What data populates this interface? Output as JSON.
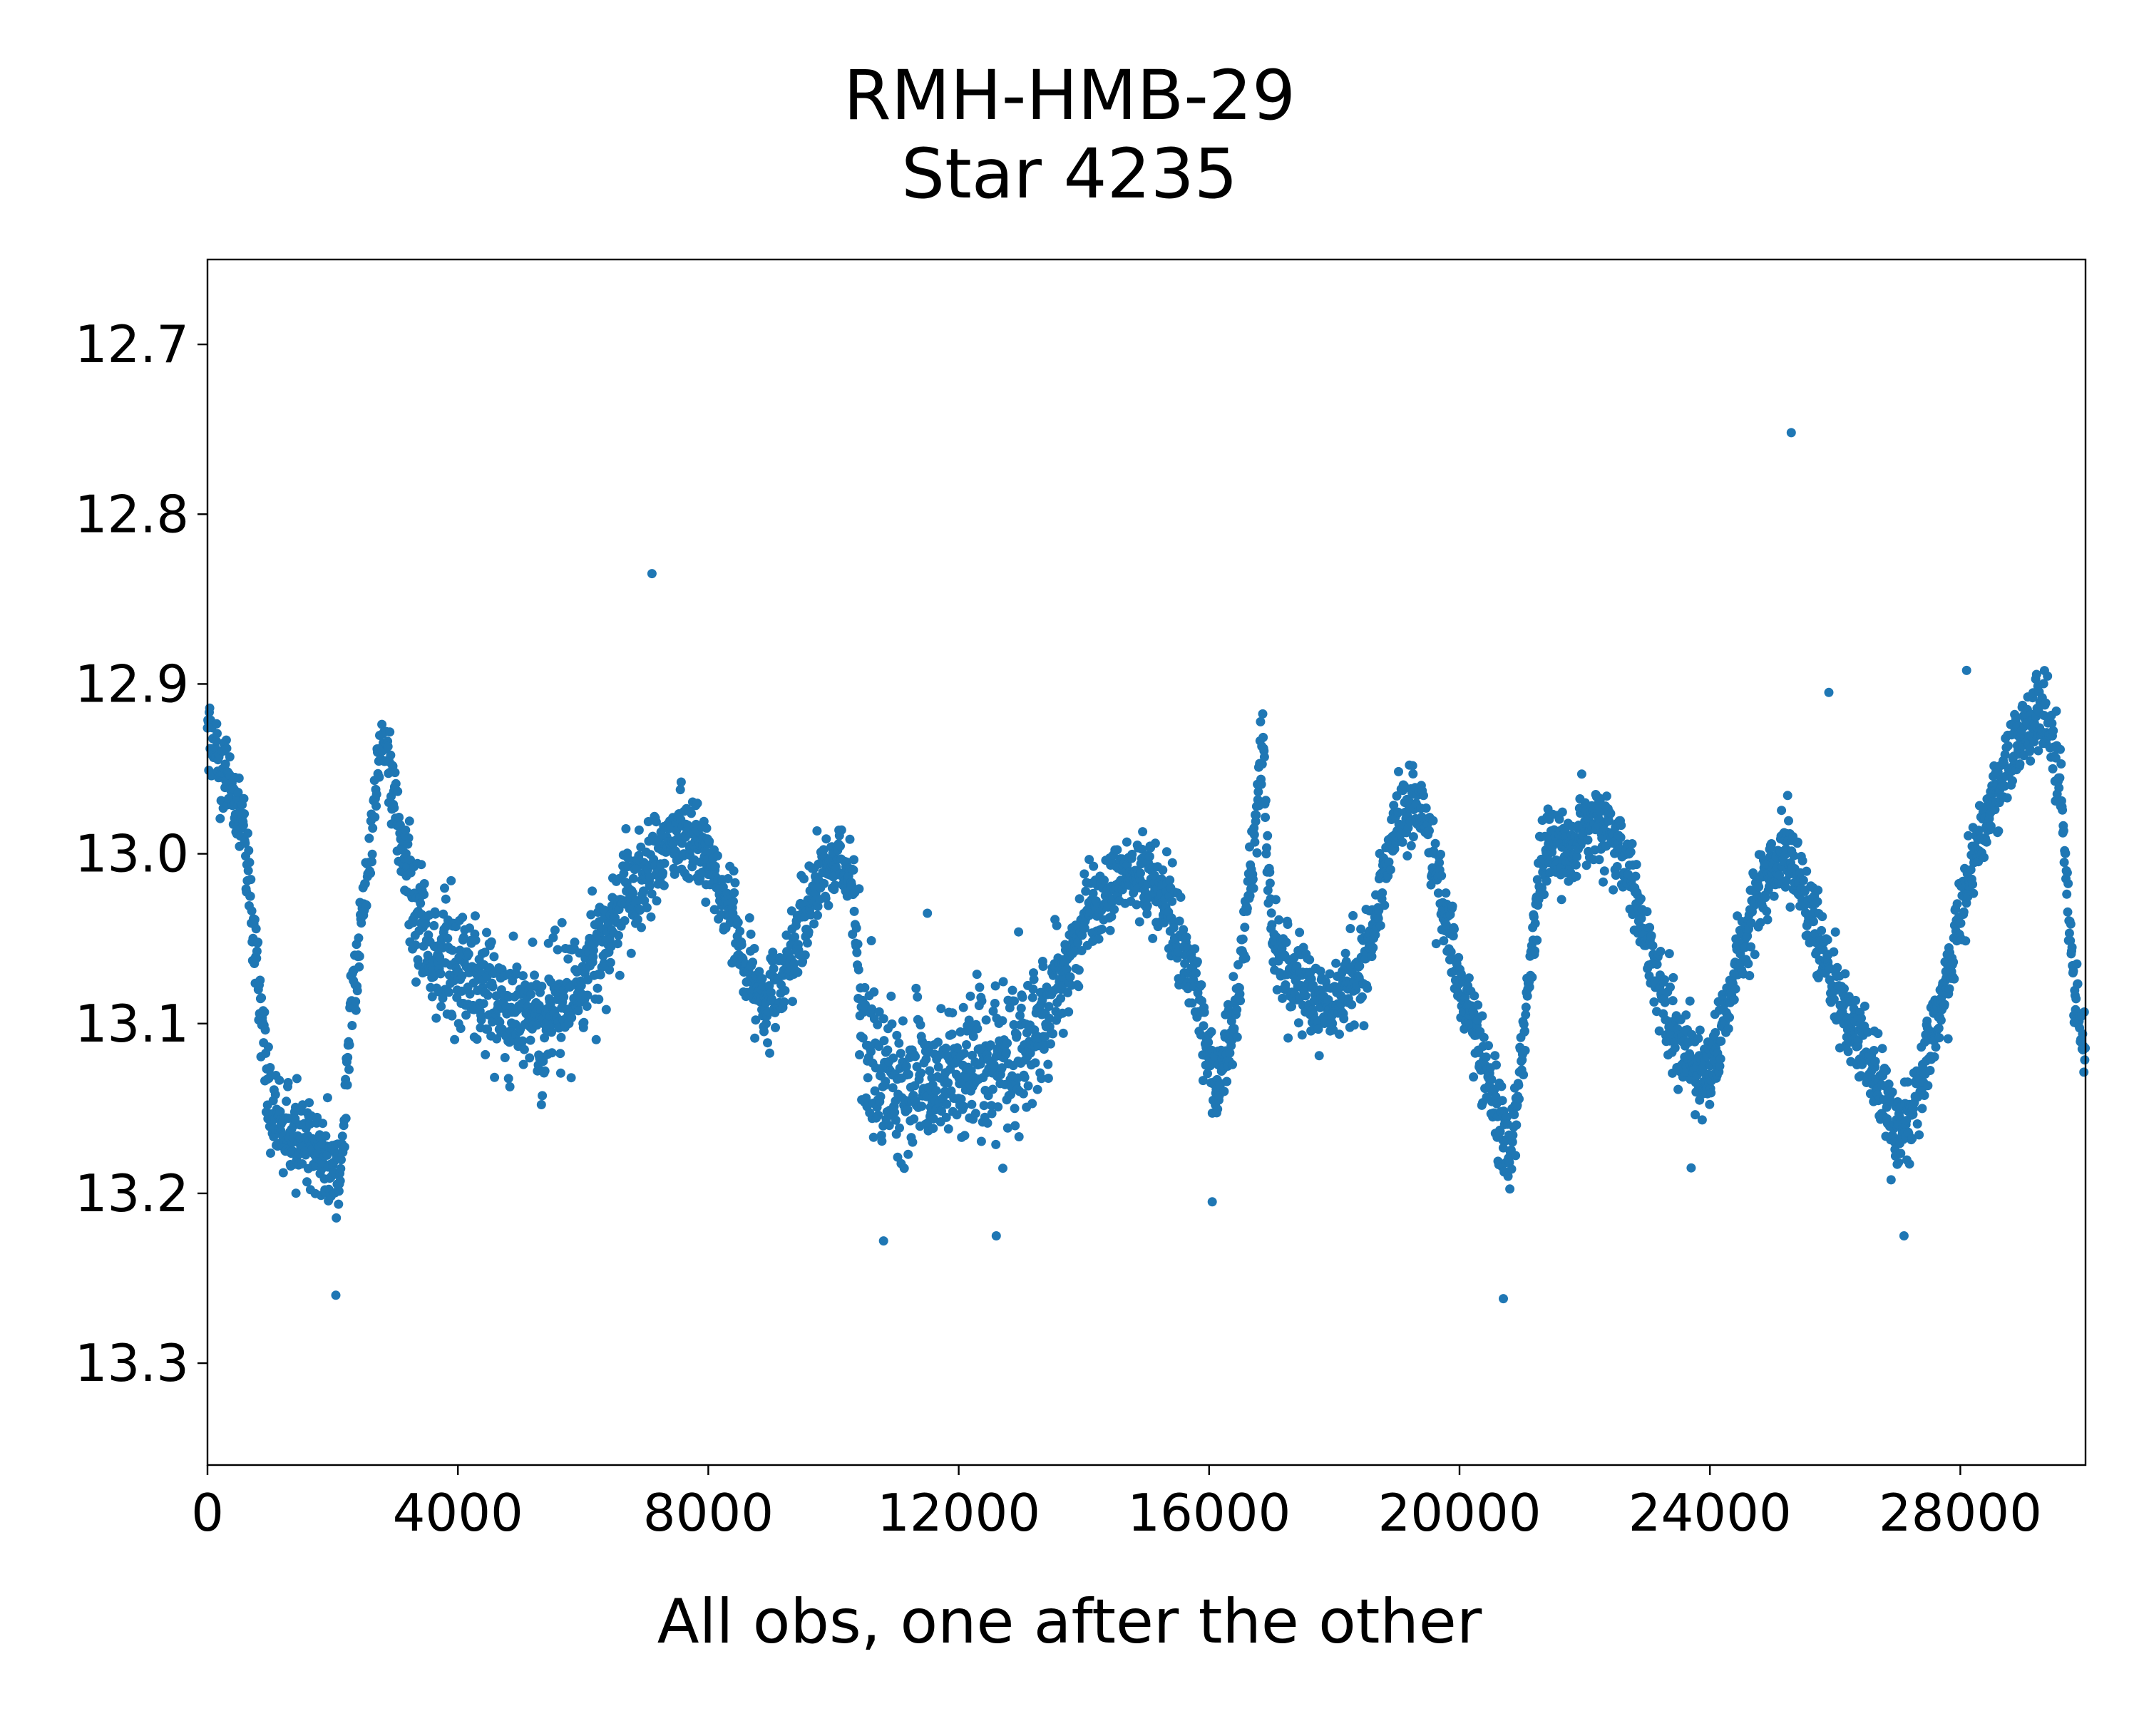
{
  "chart_data": {
    "type": "scatter",
    "title": "RMH-HMB-29",
    "subtitle": "Star 4235",
    "xlabel": "All obs, one after the other",
    "ylabel": "",
    "xlim": [
      0,
      30000
    ],
    "ylim": [
      13.36,
      12.65
    ],
    "y_inverted": true,
    "grid": false,
    "legend": "none",
    "marker_color": "#1f77b4",
    "xticks": [
      0,
      4000,
      8000,
      12000,
      16000,
      20000,
      24000,
      28000
    ],
    "xtick_labels": [
      "0",
      "4000",
      "8000",
      "12000",
      "16000",
      "20000",
      "24000",
      "28000"
    ],
    "yticks": [
      12.7,
      12.8,
      12.9,
      13.0,
      13.1,
      13.2,
      13.3
    ],
    "ytick_labels": [
      "12.7",
      "12.8",
      "12.9",
      "13.0",
      "13.1",
      "13.2",
      "13.3"
    ],
    "trend": {
      "x": [
        0,
        300,
        600,
        800,
        1000,
        1200,
        1600,
        2000,
        2100,
        2300,
        2600,
        2800,
        3000,
        3300,
        3600,
        4200,
        4800,
        5400,
        6000,
        6600,
        7200,
        7800,
        8400,
        8900,
        9300,
        9700,
        10000,
        10300,
        10500,
        11000,
        12000,
        13000,
        13500,
        14000,
        14600,
        15200,
        15800,
        16100,
        16400,
        16700,
        16850,
        17000,
        17500,
        18000,
        18500,
        19000,
        19400,
        19800,
        20200,
        20600,
        20800,
        21000,
        21300,
        21700,
        22200,
        22700,
        23200,
        23600,
        24000,
        24400,
        24800,
        25200,
        25600,
        26000,
        26500,
        27000,
        27400,
        27800,
        28200,
        28600,
        29000,
        29300,
        29600,
        29800,
        30000
      ],
      "y": [
        12.93,
        12.95,
        12.99,
        13.07,
        13.15,
        13.16,
        13.17,
        13.19,
        13.2,
        13.09,
        13.0,
        12.93,
        12.97,
        13.03,
        13.06,
        13.07,
        13.09,
        13.1,
        13.07,
        13.03,
        13.0,
        12.99,
        13.04,
        13.09,
        13.06,
        13.02,
        13.0,
        13.02,
        13.12,
        13.14,
        13.13,
        13.12,
        13.09,
        13.04,
        13.01,
        13.02,
        13.08,
        13.14,
        13.1,
        13.0,
        12.93,
        13.05,
        13.08,
        13.09,
        13.06,
        12.98,
        12.97,
        13.04,
        13.1,
        13.15,
        13.18,
        13.12,
        13.0,
        13.0,
        12.98,
        13.01,
        13.08,
        13.12,
        13.13,
        13.07,
        13.02,
        13.0,
        13.03,
        13.08,
        13.12,
        13.17,
        13.13,
        13.07,
        13.0,
        12.96,
        12.93,
        12.91,
        12.96,
        13.08,
        13.12
      ]
    },
    "n_points": 30000,
    "outliers": [
      {
        "x": 7100,
        "y": 12.835
      },
      {
        "x": 25300,
        "y": 12.752
      },
      {
        "x": 25900,
        "y": 12.905
      },
      {
        "x": 28100,
        "y": 12.892
      },
      {
        "x": 11500,
        "y": 13.035
      },
      {
        "x": 20700,
        "y": 13.262
      },
      {
        "x": 12600,
        "y": 13.225
      },
      {
        "x": 10800,
        "y": 13.228
      },
      {
        "x": 2050,
        "y": 13.26
      },
      {
        "x": 16050,
        "y": 13.205
      },
      {
        "x": 23700,
        "y": 13.185
      },
      {
        "x": 27100,
        "y": 13.225
      }
    ]
  }
}
